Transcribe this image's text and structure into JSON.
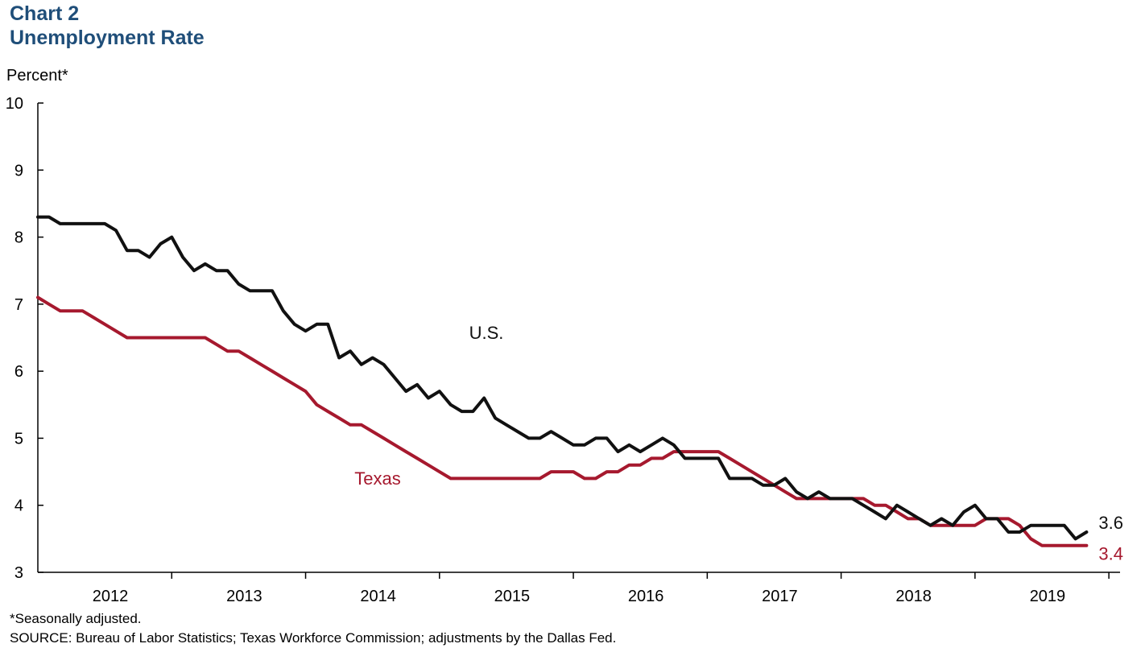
{
  "header": {
    "label": "Chart 2",
    "title": "Unemployment Rate"
  },
  "footer": {
    "footnote": "*Seasonally adjusted.",
    "source": "SOURCE: Bureau of Labor Statistics; Texas Workforce Commission; adjustments by the Dallas Fed."
  },
  "chart_data": {
    "type": "line",
    "title": "Unemployment Rate",
    "ylabel": "Percent*",
    "xlabel": "",
    "ylim": [
      3,
      10
    ],
    "yticks": [
      3,
      4,
      5,
      6,
      7,
      8,
      9,
      10
    ],
    "grid": false,
    "x_start": "2011-12",
    "x_end": "2020-01",
    "year_ticks": [
      "2012",
      "2013",
      "2014",
      "2015",
      "2016",
      "2017",
      "2018",
      "2019"
    ],
    "x": [
      "2011-12",
      "2012-01",
      "2012-02",
      "2012-03",
      "2012-04",
      "2012-05",
      "2012-06",
      "2012-07",
      "2012-08",
      "2012-09",
      "2012-10",
      "2012-11",
      "2012-12",
      "2013-01",
      "2013-02",
      "2013-03",
      "2013-04",
      "2013-05",
      "2013-06",
      "2013-07",
      "2013-08",
      "2013-09",
      "2013-10",
      "2013-11",
      "2013-12",
      "2014-01",
      "2014-02",
      "2014-03",
      "2014-04",
      "2014-05",
      "2014-06",
      "2014-07",
      "2014-08",
      "2014-09",
      "2014-10",
      "2014-11",
      "2014-12",
      "2015-01",
      "2015-02",
      "2015-03",
      "2015-04",
      "2015-05",
      "2015-06",
      "2015-07",
      "2015-08",
      "2015-09",
      "2015-10",
      "2015-11",
      "2015-12",
      "2016-01",
      "2016-02",
      "2016-03",
      "2016-04",
      "2016-05",
      "2016-06",
      "2016-07",
      "2016-08",
      "2016-09",
      "2016-10",
      "2016-11",
      "2016-12",
      "2017-01",
      "2017-02",
      "2017-03",
      "2017-04",
      "2017-05",
      "2017-06",
      "2017-07",
      "2017-08",
      "2017-09",
      "2017-10",
      "2017-11",
      "2017-12",
      "2018-01",
      "2018-02",
      "2018-03",
      "2018-04",
      "2018-05",
      "2018-06",
      "2018-07",
      "2018-08",
      "2018-09",
      "2018-10",
      "2018-11",
      "2018-12",
      "2019-01",
      "2019-02",
      "2019-03",
      "2019-04",
      "2019-05",
      "2019-06",
      "2019-07",
      "2019-08",
      "2019-09",
      "2019-10"
    ],
    "series": [
      {
        "name": "U.S.",
        "color": "#111111",
        "end_label": "3.6",
        "values": [
          8.3,
          8.3,
          8.2,
          8.2,
          8.2,
          8.2,
          8.2,
          8.1,
          7.8,
          7.8,
          7.7,
          7.9,
          8.0,
          7.7,
          7.5,
          7.6,
          7.5,
          7.5,
          7.3,
          7.2,
          7.2,
          7.2,
          6.9,
          6.7,
          6.6,
          6.7,
          6.7,
          6.2,
          6.3,
          6.1,
          6.2,
          6.1,
          5.9,
          5.7,
          5.8,
          5.6,
          5.7,
          5.5,
          5.4,
          5.4,
          5.6,
          5.3,
          5.2,
          5.1,
          5.0,
          5.0,
          5.1,
          5.0,
          4.9,
          4.9,
          5.0,
          5.0,
          4.8,
          4.9,
          4.8,
          4.9,
          5.0,
          4.9,
          4.7,
          4.7,
          4.7,
          4.7,
          4.4,
          4.4,
          4.4,
          4.3,
          4.3,
          4.4,
          4.2,
          4.1,
          4.2,
          4.1,
          4.1,
          4.1,
          4.0,
          3.9,
          3.8,
          4.0,
          3.9,
          3.8,
          3.7,
          3.8,
          3.7,
          3.9,
          4.0,
          3.8,
          3.8,
          3.6,
          3.6,
          3.7,
          3.7,
          3.7,
          3.7,
          3.5,
          3.6
        ]
      },
      {
        "name": "Texas",
        "color": "#a6192e",
        "end_label": "3.4",
        "values": [
          7.1,
          7.0,
          6.9,
          6.9,
          6.9,
          6.8,
          6.7,
          6.6,
          6.5,
          6.5,
          6.5,
          6.5,
          6.5,
          6.5,
          6.5,
          6.5,
          6.4,
          6.3,
          6.3,
          6.2,
          6.1,
          6.0,
          5.9,
          5.8,
          5.7,
          5.5,
          5.4,
          5.3,
          5.2,
          5.2,
          5.1,
          5.0,
          4.9,
          4.8,
          4.7,
          4.6,
          4.5,
          4.4,
          4.4,
          4.4,
          4.4,
          4.4,
          4.4,
          4.4,
          4.4,
          4.4,
          4.5,
          4.5,
          4.5,
          4.4,
          4.4,
          4.5,
          4.5,
          4.6,
          4.6,
          4.7,
          4.7,
          4.8,
          4.8,
          4.8,
          4.8,
          4.8,
          4.7,
          4.6,
          4.5,
          4.4,
          4.3,
          4.2,
          4.1,
          4.1,
          4.1,
          4.1,
          4.1,
          4.1,
          4.1,
          4.0,
          4.0,
          3.9,
          3.8,
          3.8,
          3.7,
          3.7,
          3.7,
          3.7,
          3.7,
          3.8,
          3.8,
          3.8,
          3.7,
          3.5,
          3.4,
          3.4,
          3.4,
          3.4,
          3.4
        ]
      }
    ]
  }
}
